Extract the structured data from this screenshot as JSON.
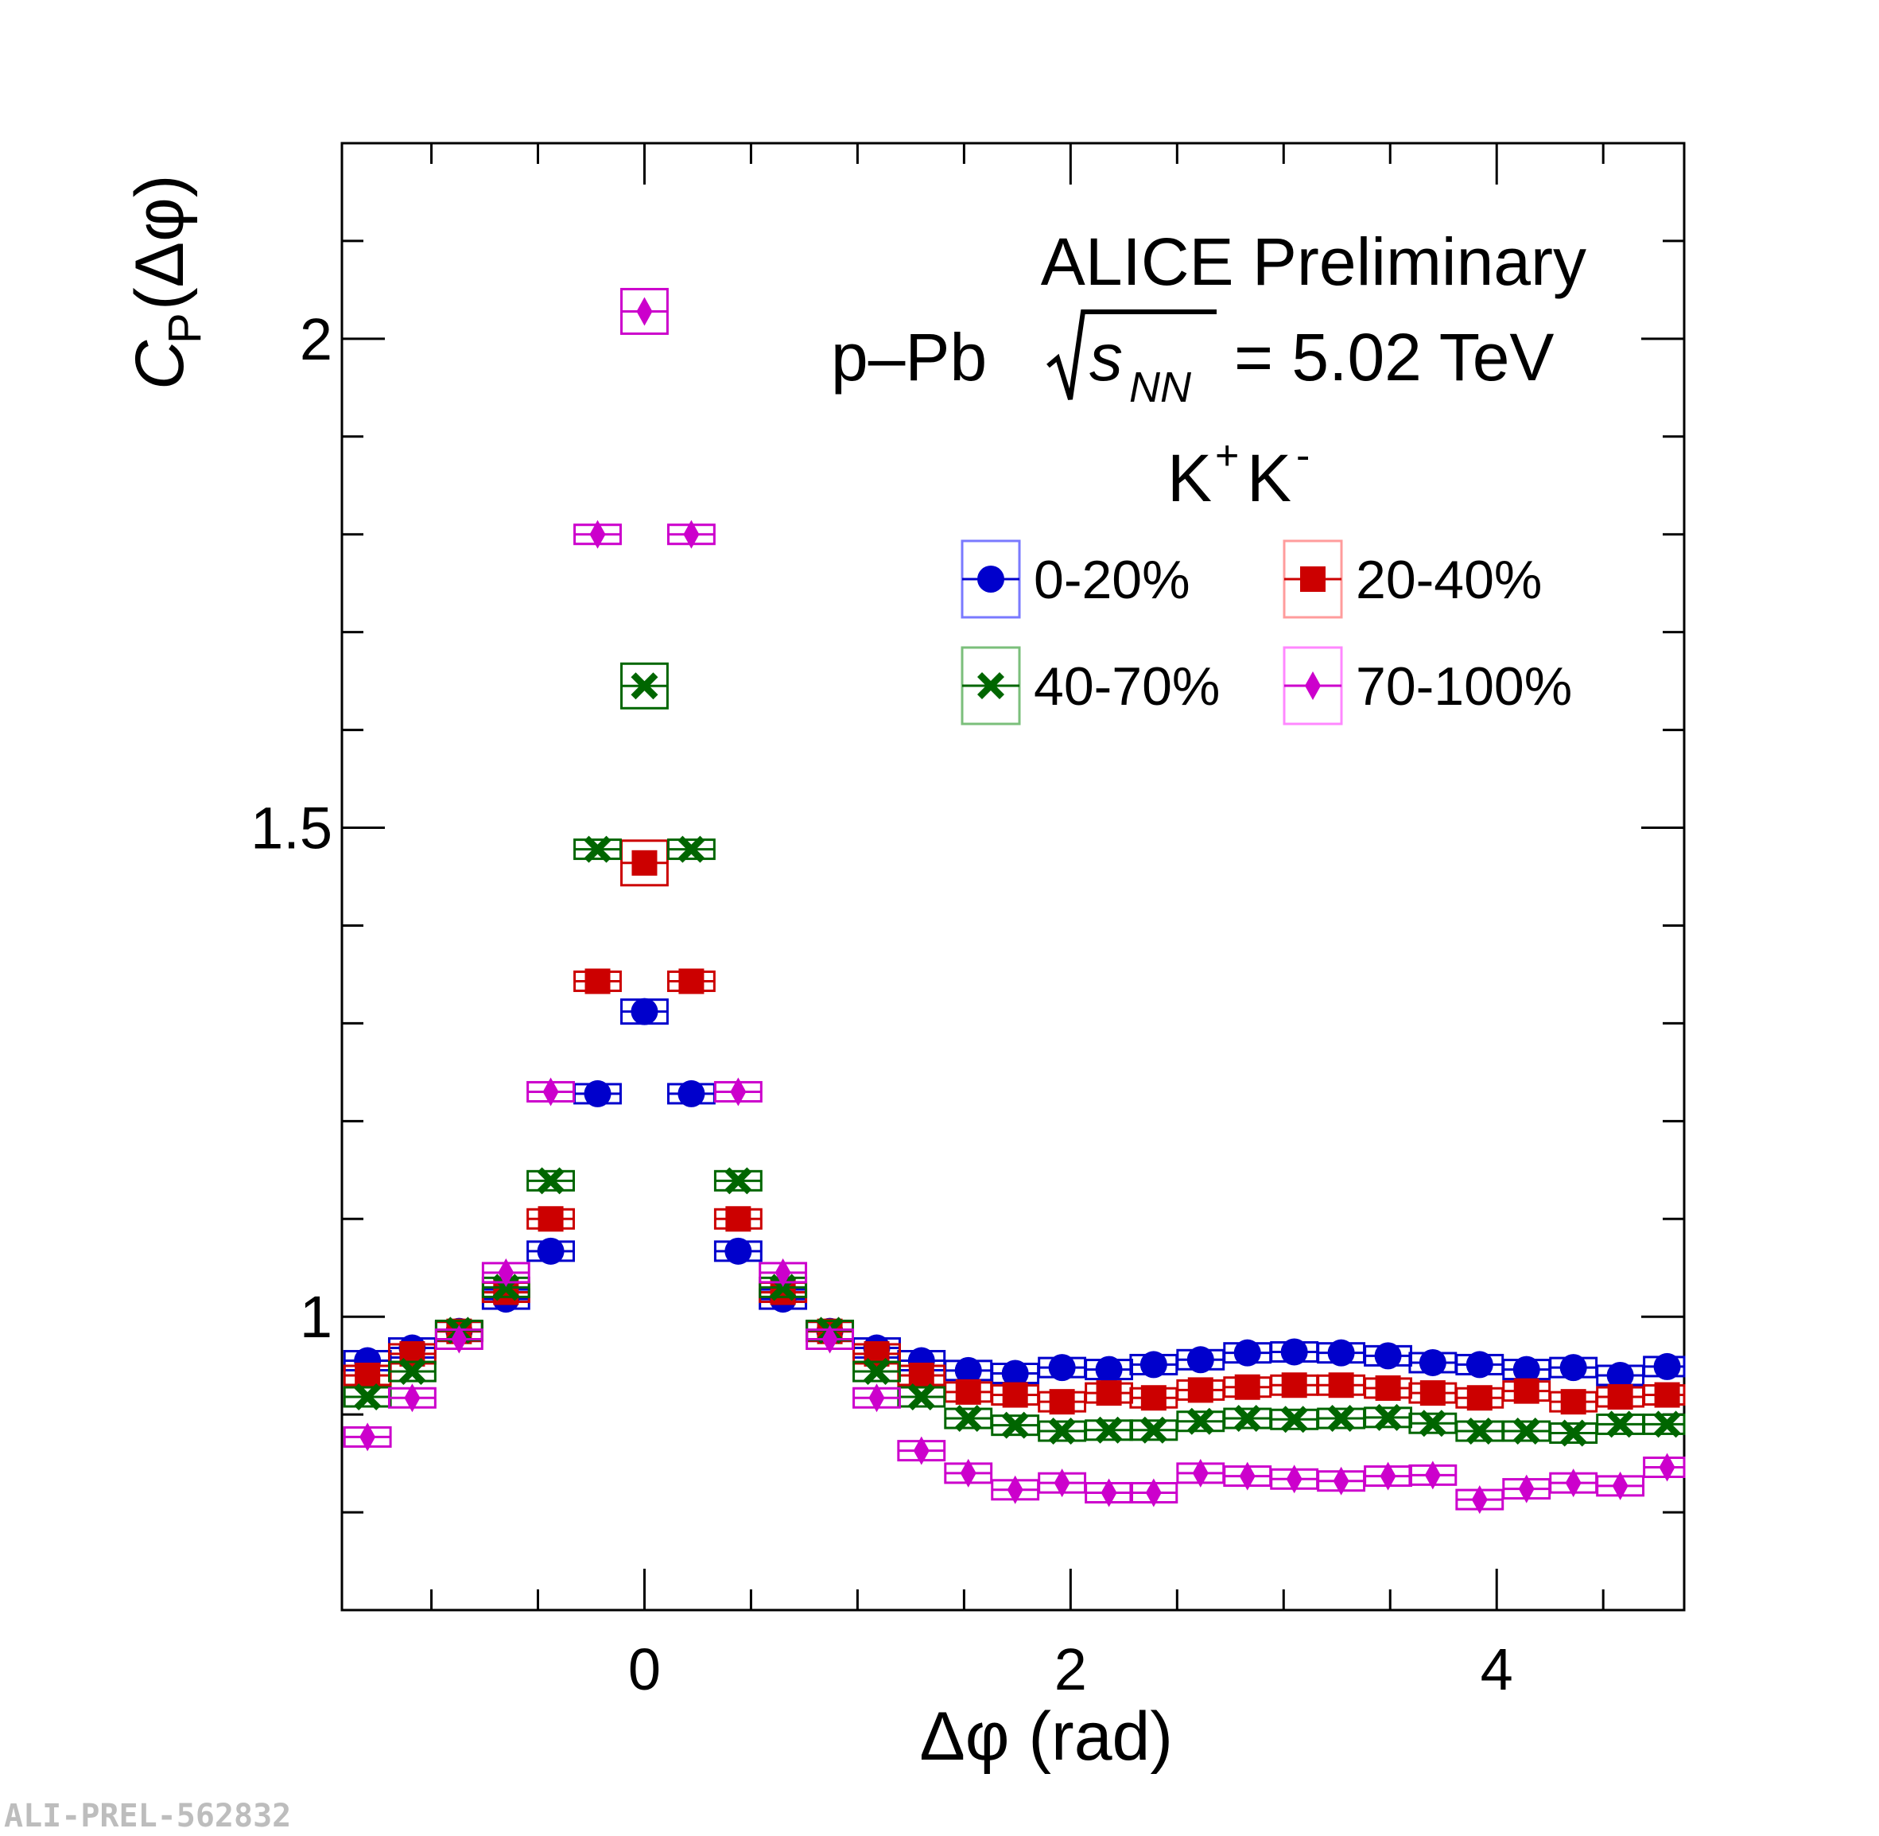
{
  "chart_data": {
    "type": "scatter",
    "header": {
      "experiment": "ALICE Preliminary",
      "collision": "p–Pb",
      "energy_symbol": "s",
      "energy_subscript": "NN",
      "energy_value": "= 5.02 TeV",
      "pair_base1": "K",
      "pair_sup1": "+",
      "pair_base2": "K",
      "pair_sup2": "-"
    },
    "xlabel": "Δφ (rad)",
    "ylabel": {
      "main": "C",
      "sub": "P",
      "rest": "(Δφ)"
    },
    "xlim": [
      -1.42,
      4.88
    ],
    "ylim": [
      0.7,
      2.2
    ],
    "x_ticks": [
      0,
      2,
      4
    ],
    "y_ticks": [
      1,
      1.5,
      2
    ],
    "x_ticklabels": [
      "0",
      "2",
      "4"
    ],
    "y_ticklabels": [
      "1",
      "1.5",
      "2"
    ],
    "legend_position": "top-right",
    "x": [
      -1.3,
      -1.09,
      -0.87,
      -0.65,
      -0.44,
      -0.22,
      0.0,
      0.22,
      0.44,
      0.65,
      0.87,
      1.09,
      1.3,
      1.52,
      1.74,
      1.96,
      2.18,
      2.39,
      2.61,
      2.83,
      3.05,
      3.27,
      3.49,
      3.7,
      3.92,
      4.14,
      4.36,
      4.58,
      4.8
    ],
    "series": [
      {
        "name": "0-20%",
        "color": "#0000cc",
        "marker": "circle",
        "values": [
          0.955,
          0.968,
          0.985,
          1.018,
          1.067,
          1.228,
          1.312,
          1.228,
          1.067,
          1.018,
          0.985,
          0.968,
          0.955,
          0.945,
          0.942,
          0.948,
          0.946,
          0.951,
          0.956,
          0.963,
          0.964,
          0.963,
          0.96,
          0.953,
          0.951,
          0.946,
          0.948,
          0.94,
          0.949
        ]
      },
      {
        "name": "20-40%",
        "color": "#cc0000",
        "marker": "square",
        "values": [
          0.94,
          0.962,
          0.985,
          1.025,
          1.1,
          1.343,
          1.464,
          1.343,
          1.1,
          1.025,
          0.985,
          0.962,
          0.94,
          0.923,
          0.92,
          0.913,
          0.922,
          0.917,
          0.925,
          0.928,
          0.93,
          0.93,
          0.927,
          0.922,
          0.917,
          0.924,
          0.913,
          0.918,
          0.92
        ]
      },
      {
        "name": "40-70%",
        "color": "#006600",
        "marker": "cross",
        "values": [
          0.918,
          0.944,
          0.986,
          1.03,
          1.139,
          1.478,
          1.645,
          1.478,
          1.139,
          1.03,
          0.986,
          0.944,
          0.918,
          0.896,
          0.889,
          0.883,
          0.884,
          0.884,
          0.893,
          0.896,
          0.895,
          0.896,
          0.897,
          0.891,
          0.883,
          0.883,
          0.881,
          0.89,
          0.89
        ]
      },
      {
        "name": "70-100%",
        "color": "#cc00cc",
        "marker": "diamond",
        "values": [
          0.877,
          0.917,
          0.977,
          1.045,
          1.23,
          1.8,
          2.028,
          1.8,
          1.23,
          1.045,
          0.977,
          0.917,
          0.863,
          0.84,
          0.823,
          0.83,
          0.82,
          0.82,
          0.84,
          0.837,
          0.834,
          0.832,
          0.837,
          0.838,
          0.813,
          0.824,
          0.83,
          0.827,
          0.846
        ]
      }
    ]
  },
  "watermark": "ALI-PREL-562832"
}
